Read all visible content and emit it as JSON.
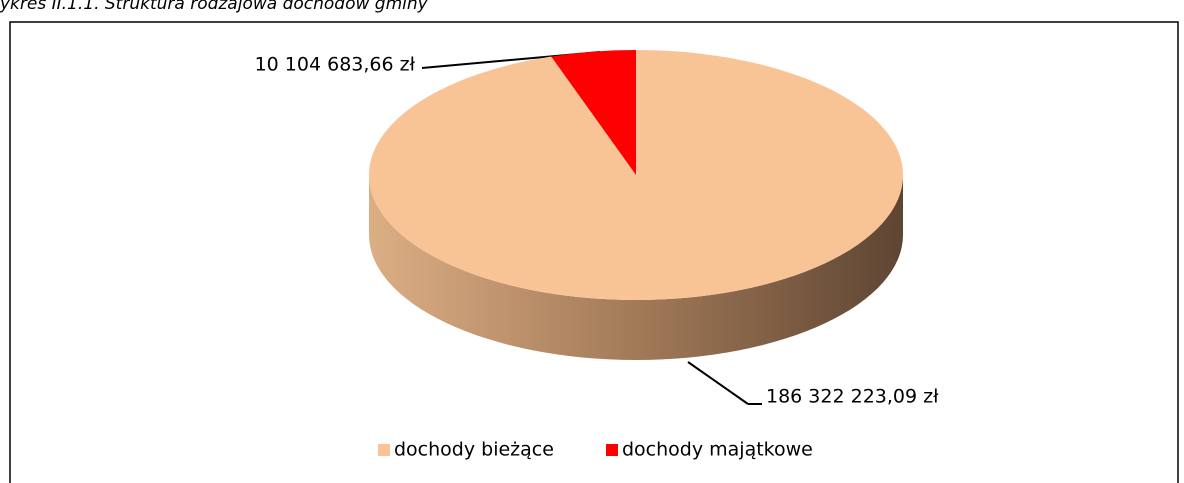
{
  "chart_data": {
    "type": "pie",
    "title": "ykres II.1.1. Struktura rodzajowa dochodów gminy",
    "categories": [
      "dochody bieżące",
      "dochody majątkowe"
    ],
    "values": [
      186322223.09,
      10104683.66
    ],
    "value_labels": [
      "186 322 223,09 zł",
      "10 104 683,66 zł"
    ],
    "colors": [
      "#f8c496",
      "#ff0000"
    ],
    "legend": "bottom"
  }
}
